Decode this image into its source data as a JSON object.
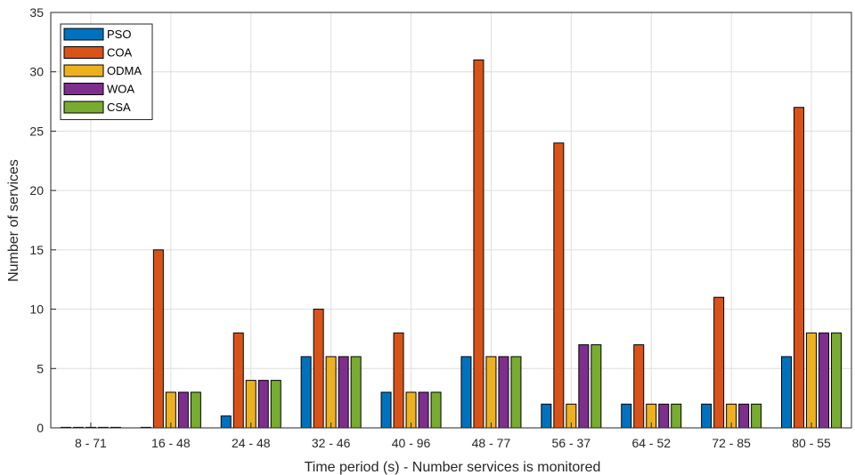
{
  "chart_data": {
    "type": "bar",
    "title": "",
    "xlabel": "Time period (s) - Number services is monitored",
    "ylabel": "Number of services",
    "ylim": [
      0,
      35
    ],
    "yticks": [
      0,
      5,
      10,
      15,
      20,
      25,
      30,
      35
    ],
    "grid": true,
    "legend_position": "top-left",
    "categories": [
      "8 - 71",
      "16 - 48",
      "24 - 48",
      "32 - 46",
      "40 - 96",
      "48 - 77",
      "56 - 37",
      "64 - 52",
      "72 - 85",
      "80 - 55"
    ],
    "series": [
      {
        "name": "PSO",
        "color": "#0072BD",
        "values": [
          0,
          0,
          1,
          6,
          3,
          6,
          2,
          2,
          2,
          6
        ]
      },
      {
        "name": "COA",
        "color": "#D95319",
        "values": [
          0,
          15,
          8,
          10,
          8,
          31,
          24,
          7,
          11,
          27
        ]
      },
      {
        "name": "ODMA",
        "color": "#EDB120",
        "values": [
          0,
          3,
          4,
          6,
          3,
          6,
          2,
          2,
          2,
          8
        ]
      },
      {
        "name": "WOA",
        "color": "#7E2F8E",
        "values": [
          0,
          3,
          4,
          6,
          3,
          6,
          7,
          2,
          2,
          8
        ]
      },
      {
        "name": "CSA",
        "color": "#77AC30",
        "values": [
          0,
          3,
          4,
          6,
          3,
          6,
          7,
          2,
          2,
          8
        ]
      }
    ]
  }
}
